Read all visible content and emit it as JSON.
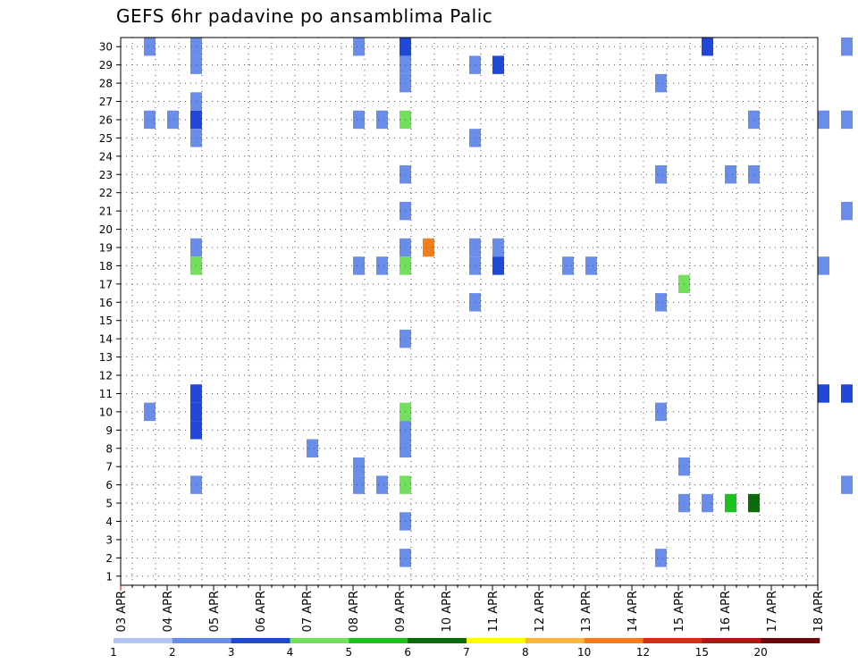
{
  "chart_data": {
    "type": "heatmap",
    "title": "GEFS 6hr padavine po ansamblima Palic",
    "xlabel": "",
    "ylabel": "",
    "y_ticks": [
      "1",
      "2",
      "3",
      "4",
      "5",
      "6",
      "7",
      "8",
      "9",
      "10",
      "11",
      "12",
      "13",
      "14",
      "15",
      "16",
      "17",
      "18",
      "19",
      "20",
      "21",
      "22",
      "23",
      "24",
      "25",
      "26",
      "27",
      "28",
      "29",
      "30"
    ],
    "y_range": [
      1,
      30
    ],
    "x_ticks": [
      "03 APR",
      "04 APR",
      "05 APR",
      "06 APR",
      "07 APR",
      "08 APR",
      "09 APR",
      "10 APR",
      "11 APR",
      "12 APR",
      "13 APR",
      "14 APR",
      "15 APR",
      "16 APR",
      "17 APR",
      "18 APR"
    ],
    "x_steps_per_day": 4,
    "grid": true,
    "legend": {
      "placement": "bottom",
      "boundaries": [
        "1",
        "2",
        "3",
        "4",
        "5",
        "6",
        "7",
        "8",
        "10",
        "12",
        "15",
        "20"
      ],
      "colors": [
        "#b4c6ef",
        "#6a8de9",
        "#1f48d6",
        "#72e05a",
        "#1ec21e",
        "#0b6b0b",
        "#ffff00",
        "#f8b63c",
        "#f67e1a",
        "#e02a13",
        "#b71414",
        "#6e0808"
      ]
    },
    "cells": [
      [
        0.5,
        30,
        1
      ],
      [
        1.5,
        30,
        1
      ],
      [
        5,
        30,
        1
      ],
      [
        6,
        30,
        2
      ],
      [
        12.5,
        30,
        2
      ],
      [
        15.5,
        30,
        1
      ],
      [
        21,
        30,
        1
      ],
      [
        21.5,
        30,
        1
      ],
      [
        27.5,
        30,
        1
      ],
      [
        28,
        30,
        1
      ],
      [
        34.5,
        30,
        1
      ],
      [
        35,
        30,
        3
      ],
      [
        35.5,
        30,
        8
      ],
      [
        1.5,
        29,
        1
      ],
      [
        6,
        29,
        1
      ],
      [
        7.5,
        29,
        1
      ],
      [
        8,
        29,
        2
      ],
      [
        21,
        29,
        1
      ],
      [
        21.5,
        29,
        1
      ],
      [
        27,
        29,
        1
      ],
      [
        32,
        29,
        7
      ],
      [
        34,
        29,
        1
      ],
      [
        34.5,
        29,
        3
      ],
      [
        35,
        29,
        7
      ],
      [
        6,
        28,
        1
      ],
      [
        11.5,
        28,
        1
      ],
      [
        31.5,
        28,
        1
      ],
      [
        32,
        28,
        1
      ],
      [
        1.5,
        27,
        1
      ],
      [
        30.5,
        27,
        2
      ],
      [
        32.5,
        27,
        2
      ],
      [
        0.5,
        26,
        1
      ],
      [
        1,
        26,
        1
      ],
      [
        1.5,
        26,
        2
      ],
      [
        5,
        26,
        1
      ],
      [
        5.5,
        26,
        1
      ],
      [
        6,
        26,
        3
      ],
      [
        13.5,
        26,
        1
      ],
      [
        15,
        26,
        1
      ],
      [
        15.5,
        26,
        1
      ],
      [
        24.5,
        26,
        1
      ],
      [
        1.5,
        25,
        1
      ],
      [
        7.5,
        25,
        1
      ],
      [
        27,
        25,
        1
      ],
      [
        34.5,
        25,
        3
      ],
      [
        35,
        25,
        1
      ],
      [
        35.5,
        25,
        1
      ],
      [
        25,
        24,
        1
      ],
      [
        6,
        23,
        1
      ],
      [
        11.5,
        23,
        1
      ],
      [
        13,
        23,
        1
      ],
      [
        13.5,
        23,
        1
      ],
      [
        32,
        22,
        3
      ],
      [
        32.5,
        22,
        4
      ],
      [
        33,
        22,
        1
      ],
      [
        6,
        21,
        1
      ],
      [
        15.5,
        21,
        1
      ],
      [
        24,
        21,
        1
      ],
      [
        23,
        20,
        1
      ],
      [
        1.5,
        19,
        1
      ],
      [
        6,
        19,
        1
      ],
      [
        6.5,
        19,
        8
      ],
      [
        7.5,
        19,
        1
      ],
      [
        8,
        19,
        1
      ],
      [
        27.5,
        19,
        2
      ],
      [
        28,
        19,
        1
      ],
      [
        28.5,
        19,
        1
      ],
      [
        31,
        19,
        2
      ],
      [
        1.5,
        18,
        3
      ],
      [
        5,
        18,
        1
      ],
      [
        5.5,
        18,
        1
      ],
      [
        6,
        18,
        3
      ],
      [
        7.5,
        18,
        1
      ],
      [
        8,
        18,
        2
      ],
      [
        9.5,
        18,
        1
      ],
      [
        10,
        18,
        1
      ],
      [
        15,
        18,
        1
      ],
      [
        26,
        18,
        3
      ],
      [
        26.5,
        18,
        1
      ],
      [
        27,
        18,
        1
      ],
      [
        35.5,
        18,
        2
      ],
      [
        12,
        17,
        3
      ],
      [
        7.5,
        16,
        1
      ],
      [
        11.5,
        16,
        1
      ],
      [
        6,
        14,
        1
      ],
      [
        24,
        14,
        4
      ],
      [
        24.5,
        14,
        2
      ],
      [
        25,
        14,
        1
      ],
      [
        25.5,
        14,
        1
      ],
      [
        27,
        14,
        1
      ],
      [
        27.5,
        14,
        3
      ],
      [
        28,
        14,
        3
      ],
      [
        29,
        14,
        5
      ],
      [
        29.5,
        14,
        6
      ],
      [
        30,
        14,
        1
      ],
      [
        30.5,
        14,
        10
      ],
      [
        31,
        14,
        4
      ],
      [
        31.5,
        14,
        1
      ],
      [
        32.5,
        14,
        1
      ],
      [
        33,
        14,
        1
      ],
      [
        33.5,
        14,
        5
      ],
      [
        34,
        14,
        2
      ],
      [
        29,
        13,
        1
      ],
      [
        30,
        13,
        1
      ],
      [
        31.5,
        13,
        3
      ],
      [
        33,
        13,
        1
      ],
      [
        33.5,
        13,
        3
      ],
      [
        25,
        12,
        3
      ],
      [
        25.5,
        12,
        3
      ],
      [
        34,
        12,
        1
      ],
      [
        34.5,
        12,
        3
      ],
      [
        35,
        12,
        2
      ],
      [
        1.5,
        11,
        2
      ],
      [
        15,
        11,
        2
      ],
      [
        15.5,
        11,
        2
      ],
      [
        22.5,
        11,
        2
      ],
      [
        34,
        11,
        1
      ],
      [
        34.5,
        11,
        3
      ],
      [
        35,
        11,
        2
      ],
      [
        0.5,
        10,
        1
      ],
      [
        1.5,
        10,
        2
      ],
      [
        6,
        10,
        3
      ],
      [
        11.5,
        10,
        1
      ],
      [
        28,
        10,
        1
      ],
      [
        28.5,
        10,
        2
      ],
      [
        29,
        10,
        1
      ],
      [
        30.5,
        10,
        1
      ],
      [
        31,
        10,
        6
      ],
      [
        33,
        10,
        9
      ],
      [
        34,
        10,
        1
      ],
      [
        34.5,
        10,
        3
      ],
      [
        35,
        10,
        1
      ],
      [
        1.5,
        9,
        2
      ],
      [
        6,
        9,
        1
      ],
      [
        27.5,
        9,
        1
      ],
      [
        28,
        9,
        7
      ],
      [
        28.5,
        9,
        8
      ],
      [
        30.5,
        9,
        1
      ],
      [
        33.5,
        9,
        3
      ],
      [
        4,
        8,
        1
      ],
      [
        6,
        8,
        1
      ],
      [
        24,
        8,
        1
      ],
      [
        24.5,
        8,
        1
      ],
      [
        26.5,
        8,
        4
      ],
      [
        27,
        8,
        1
      ],
      [
        30,
        8,
        5
      ],
      [
        35.5,
        8,
        1
      ],
      [
        5,
        7,
        1
      ],
      [
        12,
        7,
        1
      ],
      [
        22,
        7,
        2
      ],
      [
        22.5,
        7,
        1
      ],
      [
        1.5,
        6,
        1
      ],
      [
        5,
        6,
        1
      ],
      [
        5.5,
        6,
        1
      ],
      [
        6,
        6,
        3
      ],
      [
        15.5,
        6,
        1
      ],
      [
        22.5,
        6,
        2
      ],
      [
        23,
        6,
        3
      ],
      [
        29.5,
        6,
        3
      ],
      [
        30,
        6,
        1
      ],
      [
        31,
        6,
        1
      ],
      [
        31.5,
        6,
        5
      ],
      [
        32.5,
        6,
        2
      ],
      [
        34,
        6,
        3
      ],
      [
        12,
        5,
        1
      ],
      [
        12.5,
        5,
        1
      ],
      [
        13,
        5,
        4
      ],
      [
        13.5,
        5,
        5
      ],
      [
        6,
        4,
        1
      ],
      [
        19,
        4,
        1
      ],
      [
        22,
        4,
        1
      ],
      [
        23.5,
        4,
        6
      ],
      [
        24,
        4,
        4
      ],
      [
        24.5,
        4,
        4
      ],
      [
        25,
        4,
        4
      ],
      [
        25.5,
        4,
        3
      ],
      [
        26,
        4,
        6
      ],
      [
        26.5,
        4,
        4
      ],
      [
        27,
        4,
        5
      ],
      [
        27.5,
        4,
        6
      ],
      [
        28,
        4,
        5
      ],
      [
        28.5,
        4,
        7
      ],
      [
        29,
        4,
        2
      ],
      [
        29.5,
        4,
        3
      ],
      [
        30,
        4,
        5
      ],
      [
        30.5,
        4,
        1
      ],
      [
        31,
        4,
        1
      ],
      [
        31.5,
        4,
        1
      ],
      [
        32,
        4,
        10
      ],
      [
        32.5,
        4,
        2
      ],
      [
        33,
        4,
        8
      ],
      [
        33.5,
        4,
        6
      ],
      [
        34.5,
        4,
        1
      ],
      [
        22.5,
        3,
        2
      ],
      [
        23,
        3,
        2
      ],
      [
        34,
        3,
        2
      ],
      [
        34.5,
        3,
        1
      ],
      [
        35,
        3,
        8
      ],
      [
        35.5,
        3,
        7
      ],
      [
        6,
        2,
        1
      ],
      [
        11.5,
        2,
        1
      ]
    ]
  }
}
